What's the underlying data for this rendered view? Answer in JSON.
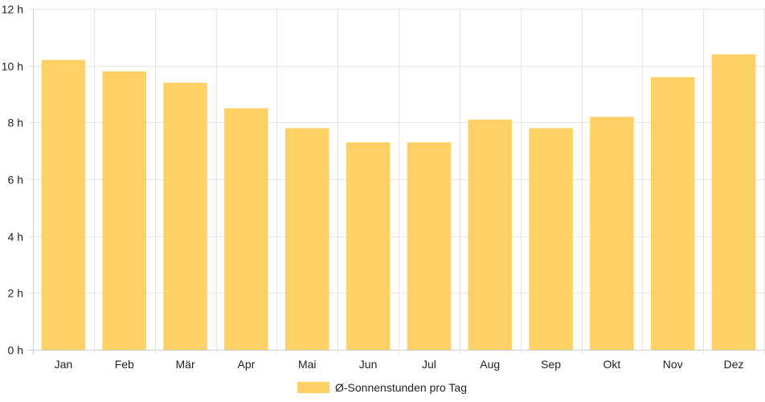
{
  "chart_data": {
    "type": "bar",
    "categories": [
      "Jan",
      "Feb",
      "Mär",
      "Apr",
      "Mai",
      "Jun",
      "Jul",
      "Aug",
      "Sep",
      "Okt",
      "Nov",
      "Dez"
    ],
    "series": [
      {
        "name": "Ø-Sonnenstunden pro Tag",
        "values": [
          10.2,
          9.8,
          9.4,
          8.5,
          7.8,
          7.3,
          7.3,
          8.1,
          7.8,
          8.2,
          9.6,
          10.4
        ]
      }
    ],
    "ylim": [
      0,
      12
    ],
    "y_ticks": [
      "0 h",
      "2 h",
      "4 h",
      "6 h",
      "8 h",
      "10 h",
      "12 h"
    ],
    "grid": true,
    "legend_position": "bottom-center",
    "colors": {
      "bar": "#fed167",
      "grid": "#e5e5e5",
      "axis": "#cccccc",
      "text": "#222222"
    }
  }
}
